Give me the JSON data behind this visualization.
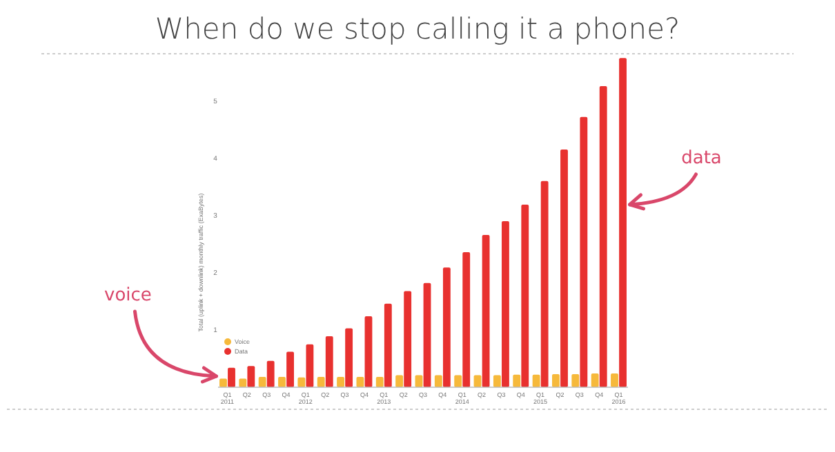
{
  "chart_data": {
    "type": "bar",
    "title": "When do we stop calling it a phone?",
    "ylabel": "Total (uplink + downlink) monthly traffic (ExaBytes)",
    "categories": [
      "Q1\n2011",
      "Q2",
      "Q3",
      "Q4",
      "Q1\n2012",
      "Q2",
      "Q3",
      "Q4",
      "Q1\n2013",
      "Q2",
      "Q3",
      "Q4",
      "Q1\n2014",
      "Q2",
      "Q3",
      "Q4",
      "Q1\n2015",
      "Q2",
      "Q3",
      "Q4",
      "Q1\n2016"
    ],
    "series": [
      {
        "name": "Voice",
        "color": "#f6b93b",
        "values": [
          0.15,
          0.15,
          0.18,
          0.18,
          0.17,
          0.18,
          0.18,
          0.18,
          0.18,
          0.21,
          0.21,
          0.21,
          0.21,
          0.21,
          0.21,
          0.22,
          0.22,
          0.23,
          0.23,
          0.24,
          0.24
        ]
      },
      {
        "name": "Data",
        "color": "#e8312f",
        "values": [
          0.34,
          0.37,
          0.46,
          0.62,
          0.75,
          0.89,
          1.03,
          1.24,
          1.46,
          1.68,
          1.82,
          2.09,
          2.36,
          2.66,
          2.9,
          3.19,
          3.6,
          4.15,
          4.72,
          5.26,
          5.75
        ]
      }
    ],
    "ylim": [
      0,
      5.8
    ],
    "yticks": [
      1,
      2,
      3,
      4,
      5
    ],
    "grid": false,
    "legend": "bottom left",
    "annotations": [
      "voice",
      "data"
    ]
  }
}
